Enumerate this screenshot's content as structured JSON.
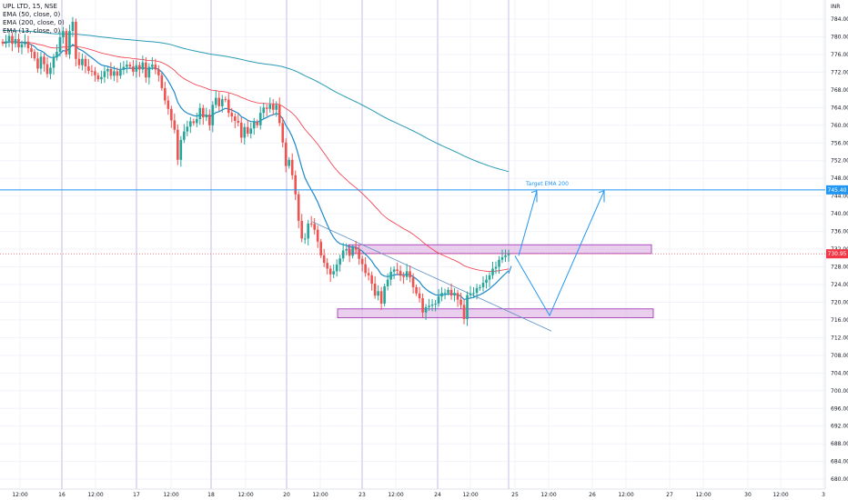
{
  "legend": {
    "symbol_line": "UPL LTD, 15, NSE",
    "ema1": "EMA (50, close, 0)",
    "ema2": "EMA (200, close, 0)",
    "ema3": "EMA (13, close, 0)"
  },
  "colors": {
    "bull": "#26a69a",
    "bear": "#ef5350",
    "ema50": "#f23645",
    "ema200": "#2a9bb5",
    "ema13": "#1e88c8",
    "zone_fill": "#e1bee7",
    "zone_border": "#9c27b0",
    "arrow": "#2196f3",
    "price_tag": "#f23645",
    "target_tag": "#2196f3"
  },
  "chart_data": {
    "type": "candlestick",
    "y_axis": {
      "currency": "INR",
      "ylim": [
        677,
        787
      ],
      "ticks": [
        "784.00",
        "780.00",
        "776.00",
        "772.00",
        "768.00",
        "764.00",
        "760.00",
        "756.00",
        "752.00",
        "748.00",
        "744.00",
        "740.00",
        "736.00",
        "732.00",
        "728.00",
        "724.00",
        "720.00",
        "716.00",
        "712.00",
        "708.00",
        "704.00",
        "700.00",
        "696.00",
        "692.00",
        "688.00",
        "684.00",
        "680.00"
      ],
      "current_price_label": "730.95",
      "current_price": 730.95,
      "target_price_label": "745.40",
      "target_price": 745.4
    },
    "x_axis": {
      "ticks": [
        "12:00",
        "16",
        "12:00",
        "17",
        "12:00",
        "18",
        "12:00",
        "20",
        "12:00",
        "23",
        "12:00",
        "24",
        "12:00",
        "25",
        "12:00",
        "26",
        "12:00",
        "27",
        "12:00",
        "30",
        "12:00",
        "3"
      ],
      "day_starts": [
        "16",
        "17",
        "18",
        "20",
        "23",
        "24",
        "25"
      ]
    },
    "closes": [
      778.5,
      779.0,
      780.2,
      778.4,
      779.5,
      777.6,
      778.3,
      778.9,
      777.4,
      776.6,
      775.1,
      772.8,
      775.5,
      773.8,
      771.6,
      773.0,
      775.3,
      776.6,
      779.9,
      781.3,
      776.0,
      781.3,
      783.4,
      775.0,
      773.6,
      775.0,
      773.3,
      772.3,
      772.2,
      771.3,
      770.4,
      770.9,
      772.2,
      772.7,
      771.2,
      772.2,
      771.2,
      772.5,
      773.2,
      773.7,
      773.3,
      772.1,
      773.6,
      772.6,
      774.2,
      770.8,
      773.2,
      773.7,
      772.6,
      771.3,
      768.4,
      765.6,
      763.7,
      761.1,
      759.0,
      752.2,
      756.7,
      758.6,
      759.7,
      760.9,
      760.5,
      761.4,
      763.9,
      761.8,
      762.4,
      760.0,
      764.6,
      766.2,
      764.3,
      765.9,
      765.8,
      762.8,
      762.0,
      761.0,
      760.6,
      757.2,
      759.6,
      758.1,
      759.3,
      760.7,
      760.0,
      762.8,
      764.0,
      763.7,
      764.7,
      763.5,
      764.6,
      760.5,
      756.1,
      750.8,
      752.2,
      748.7,
      744.4,
      738.4,
      734.4,
      734.4,
      737.8,
      737.7,
      736.4,
      733.7,
      730.6,
      728.9,
      727.6,
      726.3,
      727.0,
      728.5,
      729.9,
      731.7,
      732.0,
      730.5,
      732.4,
      731.9,
      729.8,
      728.6,
      726.6,
      726.1,
      724.2,
      721.5,
      722.5,
      719.7,
      723.6,
      725.1,
      726.9,
      727.4,
      727.1,
      726.0,
      725.7,
      727.0,
      725.6,
      723.4,
      722.0,
      720.9,
      717.7,
      718.9,
      719.2,
      719.5,
      719.7,
      721.3,
      722.1,
      722.1,
      722.8,
      721.5,
      722.1,
      720.6,
      719.4,
      716.2,
      721.6,
      722.0,
      722.1,
      723.2,
      723.4,
      724.4,
      725.1,
      726.1,
      727.6,
      728.0,
      729.6,
      730.2,
      730.6,
      730.95
    ],
    "ema_13_last": 728.5,
    "zones": [
      {
        "top": 733.0,
        "bottom": 731.0
      },
      {
        "top": 718.5,
        "bottom": 716.5
      }
    ],
    "target_line": 745.4,
    "annotation": "Target EMA 200"
  }
}
